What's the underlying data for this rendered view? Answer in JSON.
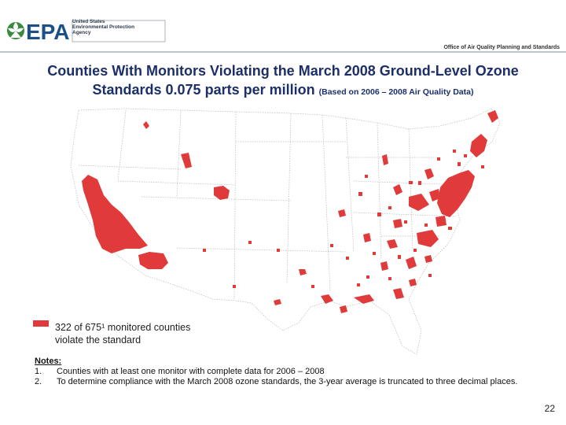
{
  "header": {
    "agency_abbr": "EPA",
    "agency_lines": [
      "United States",
      "Environmental Protection",
      "Agency"
    ],
    "office": "Office of Air Quality Planning and Standards"
  },
  "title": {
    "line1": "Counties With Monitors Violating the March 2008 Ground-Level Ozone",
    "line2_main": "Standards 0.075 parts per million",
    "line2_small": "(Based on 2006 – 2008 Air Quality Data)"
  },
  "legend": {
    "text_line1": "322 of 675¹ monitored counties",
    "text_line2": "violate the standard",
    "color": "#e03a3a"
  },
  "notes": {
    "header": "Notes:",
    "items": [
      {
        "num": "1.",
        "text": "Counties with at least one monitor with complete data for 2006 – 2008"
      },
      {
        "num": "2.",
        "text": "To determine compliance with the March 2008 ozone standards, the 3-year average is truncated to three decimal places."
      }
    ]
  },
  "page_number": "22",
  "colors": {
    "violation": "#e03a3a",
    "title": "#1c2f66",
    "epa_green": "#3a8a3c",
    "epa_blue": "#1b4f8a"
  }
}
